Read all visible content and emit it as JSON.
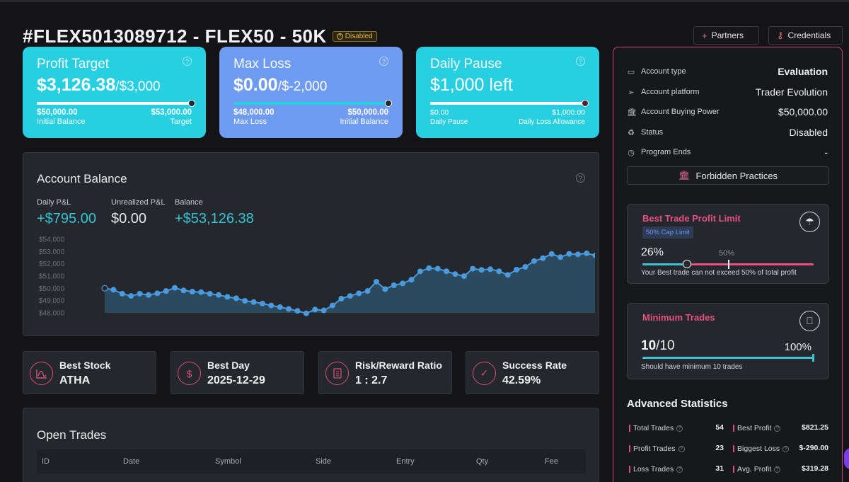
{
  "header": {
    "title": "#FLEX5013089712 - FLEX50 - 50K",
    "status_badge": "Disabled",
    "partners_label": "Partners",
    "credentials_label": "Credentials"
  },
  "kpis": {
    "profit_target": {
      "title": "Profit Target",
      "value": "$3,126.38",
      "target_suffix": "/$3,000",
      "progress": 1.0,
      "left_amount": "$50,000.00",
      "left_label": "Initial Balance",
      "right_amount": "$53,000.00",
      "right_label": "Target",
      "color": "#27cfe0"
    },
    "max_loss": {
      "title": "Max Loss",
      "value": "$0.00",
      "target_suffix": "/$-2,000",
      "progress": 1.0,
      "left_amount": "$48,000.00",
      "left_label": "Max Loss",
      "right_amount": "$50,000.00",
      "right_label": "Initial Balance",
      "color": "#6f9cf0"
    },
    "daily_pause": {
      "title": "Daily Pause",
      "value": "$1,000 left",
      "progress": 1.0,
      "left_amount": "$0.00",
      "left_label": "Daily Pause",
      "right_amount": "$1,000.00",
      "right_label": "Daily Loss Allowance",
      "color": "#27cfe0"
    }
  },
  "balance": {
    "title": "Account Balance",
    "daily_pnl_label": "Daily P&L",
    "daily_pnl_value": "+$795.00",
    "unrealized_label": "Unrealized P&L",
    "unrealized_value": "$0.00",
    "balance_label": "Balance",
    "balance_value": "+$53,126.38"
  },
  "chart_data": {
    "type": "area",
    "y_ticks": [
      "$54,000",
      "$53,000",
      "$52,000",
      "$51,000",
      "$50,000",
      "$49,000",
      "$48,000"
    ],
    "ylim": [
      48000,
      54000
    ],
    "values": [
      50000,
      49880,
      49560,
      49380,
      49560,
      49460,
      49590,
      49780,
      50040,
      49830,
      49730,
      49690,
      49560,
      49460,
      49300,
      49190,
      48980,
      48880,
      48760,
      48600,
      48470,
      48320,
      48160,
      47960,
      48270,
      48200,
      48600,
      49160,
      49380,
      49590,
      49780,
      50540,
      49930,
      50250,
      50400,
      50700,
      51380,
      51640,
      51600,
      51390,
      51160,
      50990,
      51600,
      51500,
      51560,
      51390,
      51090,
      51520,
      51750,
      52220,
      52460,
      52800,
      52540,
      52810,
      52770,
      52850,
      52680,
      53130
    ],
    "color": "#4a9ae0"
  },
  "stats": [
    {
      "label": "Best Stock",
      "value": "ATHA",
      "icon": "chart-curve-icon"
    },
    {
      "label": "Best Day",
      "value": "2025-12-29",
      "icon": "dollar-refresh-icon"
    },
    {
      "label": "Risk/Reward Ratio",
      "value": "1 : 2.7",
      "icon": "calculator-icon"
    },
    {
      "label": "Success Rate",
      "value": "42.59%",
      "icon": "check-icon"
    }
  ],
  "open_trades": {
    "title": "Open Trades",
    "columns": [
      "ID",
      "Date",
      "Symbol",
      "Side",
      "Entry",
      "Qty",
      "Fee"
    ]
  },
  "account_info": [
    {
      "label": "Account type",
      "value": "Evaluation",
      "icon": "monitor-icon",
      "bold": true
    },
    {
      "label": "Account platform",
      "value": "Trader Evolution",
      "icon": "send-icon",
      "bold": false
    },
    {
      "label": "Account Buying Power",
      "value": "$50,000.00",
      "icon": "bank-icon",
      "bold": false
    },
    {
      "label": "Status",
      "value": "Disabled",
      "icon": "recycle-icon",
      "bold": false
    },
    {
      "label": "Program Ends",
      "value": "-",
      "icon": "clock-icon",
      "bold": false
    }
  ],
  "forbidden_label": "Forbidden Practices",
  "best_trade_limit": {
    "title": "Best Trade Profit Limit",
    "tag": "50% Cap Limit",
    "current": "26%",
    "cap": "50%",
    "current_fraction": 0.26,
    "cap_fraction": 0.5,
    "note": "Your Best trade can not exceed 50% of total profit"
  },
  "minimum_trades": {
    "title": "Minimum Trades",
    "count": "10",
    "required": "/10",
    "percent": "100%",
    "progress": 1.0,
    "note": "Should have minimum 10 trades"
  },
  "advanced": {
    "title": "Advanced Statistics",
    "left": [
      {
        "label": "Total Trades",
        "value": "54"
      },
      {
        "label": "Profit Trades",
        "value": "23"
      },
      {
        "label": "Loss Trades",
        "value": "31"
      }
    ],
    "right": [
      {
        "label": "Best Profit",
        "value": "$821.25"
      },
      {
        "label": "Biggest Loss",
        "value": "$-290.00"
      },
      {
        "label": "Avg. Profit",
        "value": "$319.28"
      }
    ]
  }
}
